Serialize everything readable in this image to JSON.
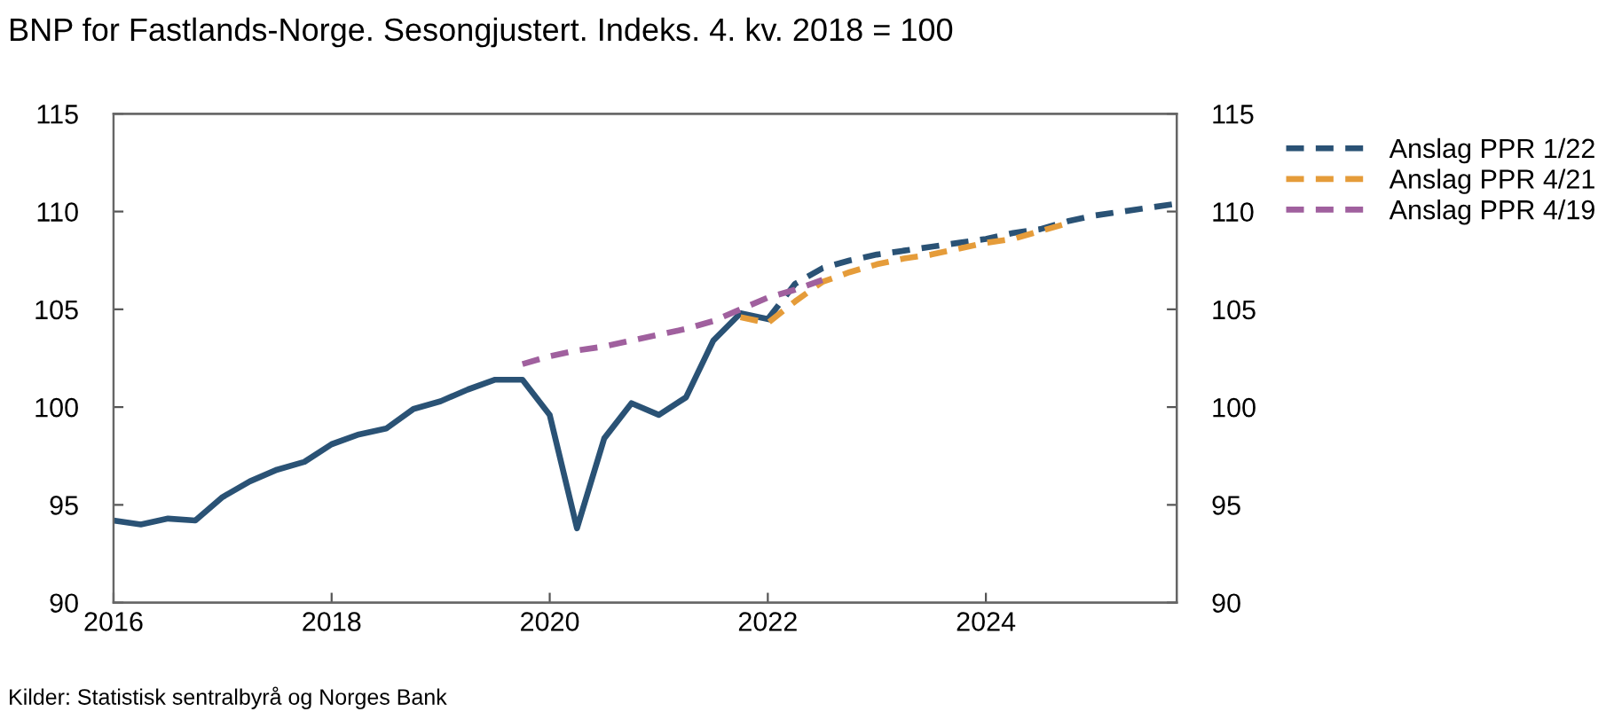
{
  "chart_data": {
    "type": "line",
    "title": "BNP for Fastlands-Norge. Sesongjustert. Indeks. 4. kv. 2018 = 100",
    "xlim": [
      2016,
      2025.75
    ],
    "xticks": [
      2016,
      2018,
      2020,
      2022,
      2024
    ],
    "ylim": [
      90,
      115
    ],
    "yticks": [
      90,
      95,
      100,
      105,
      110,
      115
    ],
    "y2lim": [
      90,
      115
    ],
    "y2ticks": [
      90,
      95,
      100,
      105,
      110,
      115
    ],
    "grid": false,
    "legend": "top right",
    "marker": "none",
    "annotations": [
      "Kilder: Statistisk sentralbyrå og Norges Bank"
    ],
    "series": [
      {
        "color": "#2a5275",
        "line_style": "solid",
        "x": [
          2016,
          2016.25,
          2016.5,
          2016.75,
          2017,
          2017.25,
          2017.5,
          2017.75,
          2018,
          2018.25,
          2018.5,
          2018.75,
          2019,
          2019.25,
          2019.5,
          2019.75,
          2020,
          2020.25,
          2020.5,
          2020.75,
          2021,
          2021.25,
          2021.5,
          2021.75,
          2022
        ],
        "values": [
          94.2,
          94.0,
          94.3,
          94.2,
          95.4,
          96.2,
          96.8,
          97.2,
          98.1,
          98.6,
          98.9,
          99.9,
          100.3,
          100.9,
          101.4,
          101.4,
          99.6,
          93.8,
          98.4,
          100.2,
          99.6,
          100.5,
          103.4,
          104.8,
          104.5
        ]
      },
      {
        "name": "Anslag PPR 1/22",
        "color": "#2a5275",
        "line_style": "dashed",
        "x": [
          2022,
          2022.25,
          2022.5,
          2022.75,
          2023,
          2023.25,
          2023.5,
          2023.75,
          2024,
          2024.25,
          2024.5,
          2024.75,
          2025,
          2025.25,
          2025.5,
          2025.75
        ],
        "values": [
          104.5,
          106.3,
          107.1,
          107.5,
          107.8,
          108.0,
          108.2,
          108.4,
          108.6,
          108.9,
          109.1,
          109.5,
          109.8,
          110.0,
          110.2,
          110.4
        ]
      },
      {
        "name": "Anslag PPR 4/21",
        "color": "#e59c3a",
        "line_style": "dashed",
        "x": [
          2021.75,
          2022,
          2022.25,
          2022.5,
          2022.75,
          2023,
          2023.25,
          2023.5,
          2023.75,
          2024,
          2024.25,
          2024.5,
          2024.75
        ],
        "values": [
          104.6,
          104.3,
          105.4,
          106.4,
          106.9,
          107.3,
          107.6,
          107.8,
          108.1,
          108.4,
          108.6,
          109.0,
          109.4
        ]
      },
      {
        "name": "Anslag PPR 4/19",
        "color": "#a0609e",
        "line_style": "dashed",
        "x": [
          2019.75,
          2020,
          2020.25,
          2020.5,
          2020.75,
          2021,
          2021.25,
          2021.5,
          2021.75,
          2022,
          2022.25,
          2022.5
        ],
        "values": [
          102.2,
          102.6,
          102.9,
          103.1,
          103.4,
          103.7,
          104.0,
          104.4,
          105.0,
          105.6,
          106.0,
          106.5
        ]
      }
    ]
  }
}
